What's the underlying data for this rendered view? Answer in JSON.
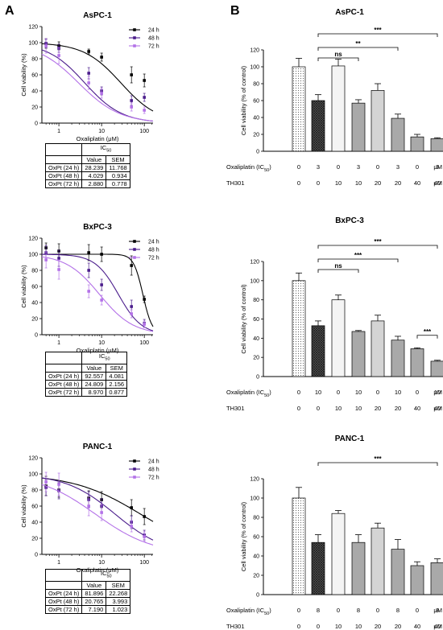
{
  "panel_labels": [
    "A",
    "B"
  ],
  "chart_data": [
    {
      "type": "scatter",
      "title": "AsPC-1",
      "xlabel": "Oxaliplatin (μM)",
      "ylabel": "Cell viability (%)",
      "x_scale": "log",
      "xlim": [
        0.4,
        160
      ],
      "ylim": [
        0,
        120
      ],
      "x_ticks": [
        "1",
        "10",
        "100"
      ],
      "y_ticks": [
        "0",
        "20",
        "40",
        "60",
        "80",
        "100",
        "120"
      ],
      "legend_position": "top-right",
      "series": [
        {
          "name": "24 h",
          "color": "#000000",
          "x": [
            0.5,
            1,
            5,
            10,
            50,
            100
          ],
          "y": [
            99,
            96,
            89,
            82,
            60,
            53
          ],
          "err": [
            6,
            5,
            3,
            5,
            10,
            8
          ],
          "fit_ic50": 28.239,
          "fit_hill": 1.0
        },
        {
          "name": "48 h",
          "color": "#4b1d8c",
          "x": [
            0.5,
            1,
            5,
            10,
            50,
            100
          ],
          "y": [
            99,
            93,
            62,
            40,
            28,
            32
          ],
          "err": [
            5,
            5,
            7,
            5,
            6,
            5
          ],
          "fit_ic50": 4.029,
          "fit_hill": 1.0
        },
        {
          "name": "72 h",
          "color": "#b472e8",
          "x": [
            0.5,
            1,
            5,
            10,
            50,
            100
          ],
          "y": [
            96,
            84,
            50,
            37,
            20,
            16
          ],
          "err": [
            9,
            10,
            8,
            6,
            5,
            4
          ],
          "fit_ic50": 2.88,
          "fit_hill": 0.9
        }
      ]
    },
    {
      "type": "scatter",
      "title": "BxPC-3",
      "xlabel": "Oxaliplatin (μM)",
      "ylabel": "Cell viability (%)",
      "x_scale": "log",
      "xlim": [
        0.4,
        160
      ],
      "ylim": [
        0,
        120
      ],
      "x_ticks": [
        "1",
        "10",
        "100"
      ],
      "y_ticks": [
        "0",
        "20",
        "40",
        "60",
        "80",
        "100",
        "120"
      ],
      "legend_position": "top-right",
      "series": [
        {
          "name": "24 h",
          "color": "#000000",
          "x": [
            0.5,
            1,
            5,
            10,
            50,
            100
          ],
          "y": [
            108,
            104,
            102,
            100,
            86,
            44
          ],
          "err": [
            6,
            9,
            10,
            9,
            12,
            4
          ],
          "fit_ic50": 92.557,
          "fit_hill": 4.0
        },
        {
          "name": "48 h",
          "color": "#4b1d8c",
          "x": [
            0.5,
            1,
            5,
            10,
            50,
            100
          ],
          "y": [
            102,
            95,
            80,
            62,
            35,
            14
          ],
          "err": [
            9,
            10,
            9,
            7,
            8,
            5
          ],
          "fit_ic50": 24.809,
          "fit_hill": 1.6
        },
        {
          "name": "72 h",
          "color": "#b472e8",
          "x": [
            0.5,
            1,
            5,
            10,
            50,
            100
          ],
          "y": [
            93,
            81,
            54,
            43,
            26,
            13
          ],
          "err": [
            10,
            12,
            8,
            6,
            5,
            4
          ],
          "fit_ic50": 8.97,
          "fit_hill": 1.1
        }
      ]
    },
    {
      "type": "scatter",
      "title": "PANC-1",
      "xlabel": "Oxaliplatin (μM)",
      "ylabel": "Cell viability (%)",
      "x_scale": "log",
      "xlim": [
        0.4,
        160
      ],
      "ylim": [
        0,
        120
      ],
      "x_ticks": [
        "1",
        "10",
        "100"
      ],
      "y_ticks": [
        "0",
        "20",
        "40",
        "60",
        "80",
        "100",
        "120"
      ],
      "legend_position": "top-right",
      "series": [
        {
          "name": "24 h",
          "color": "#000000",
          "x": [
            0.5,
            1,
            5,
            10,
            50,
            100
          ],
          "y": [
            85,
            80,
            70,
            68,
            58,
            47
          ],
          "err": [
            12,
            9,
            9,
            10,
            10,
            10
          ],
          "fit_ic50": 81.896,
          "fit_hill": 0.55
        },
        {
          "name": "48 h",
          "color": "#4b1d8c",
          "x": [
            0.5,
            1,
            5,
            10,
            50,
            100
          ],
          "y": [
            83,
            79,
            68,
            60,
            40,
            24
          ],
          "err": [
            10,
            10,
            10,
            9,
            8,
            6
          ],
          "fit_ic50": 20.765,
          "fit_hill": 0.75
        },
        {
          "name": "72 h",
          "color": "#b472e8",
          "x": [
            0.5,
            1,
            5,
            10,
            50,
            100
          ],
          "y": [
            90,
            87,
            60,
            52,
            35,
            22
          ],
          "err": [
            12,
            14,
            12,
            10,
            7,
            6
          ],
          "fit_ic50": 7.19,
          "fit_hill": 0.65
        }
      ]
    },
    {
      "type": "bar",
      "title": "AsPC-1",
      "ylabel": "Cell viability (% of control)",
      "ylim": [
        0,
        120
      ],
      "y_ticks": [
        "0",
        "20",
        "40",
        "60",
        "80",
        "100",
        "120"
      ],
      "row_labels": [
        "Oxaliplatin (IC50)",
        "TH301"
      ],
      "unit": "μM",
      "oxaliplatin": [
        "0",
        "3",
        "0",
        "3",
        "0",
        "3",
        "0",
        "3"
      ],
      "th301": [
        "0",
        "0",
        "10",
        "10",
        "20",
        "20",
        "40",
        "40"
      ],
      "values": [
        100,
        60,
        101,
        57,
        72,
        39,
        17,
        15
      ],
      "errors": [
        10,
        7,
        8,
        4,
        8,
        5,
        3,
        1
      ],
      "fills": [
        "dots",
        "cross",
        "#f4f4f4",
        "#a9a9a9",
        "#d4d4d4",
        "#a9a9a9",
        "#a9a9a9",
        "#a9a9a9"
      ],
      "significance": [
        {
          "from": 1,
          "to": 7,
          "label": "***"
        },
        {
          "from": 1,
          "to": 5,
          "label": "**"
        },
        {
          "from": 1,
          "to": 3,
          "label": "ns"
        }
      ]
    },
    {
      "type": "bar",
      "title": "BxPC-3",
      "ylabel": "Cell viability (% of control)",
      "ylim": [
        0,
        120
      ],
      "y_ticks": [
        "0",
        "20",
        "40",
        "60",
        "80",
        "100",
        "120"
      ],
      "row_labels": [
        "Oxaliplatin (IC50)",
        "TH301"
      ],
      "unit": "μM",
      "oxaliplatin": [
        "0",
        "10",
        "0",
        "10",
        "0",
        "10",
        "0",
        "10"
      ],
      "th301": [
        "0",
        "0",
        "10",
        "10",
        "20",
        "20",
        "40",
        "40"
      ],
      "values": [
        100,
        53,
        80,
        47,
        58,
        38,
        29,
        16
      ],
      "errors": [
        8,
        5,
        5,
        1,
        6,
        4,
        1,
        1
      ],
      "fills": [
        "dots",
        "cross",
        "#f4f4f4",
        "#a9a9a9",
        "#d4d4d4",
        "#a9a9a9",
        "#a9a9a9",
        "#a9a9a9"
      ],
      "significance": [
        {
          "from": 1,
          "to": 7,
          "label": "***"
        },
        {
          "from": 1,
          "to": 5,
          "label": "***"
        },
        {
          "from": 1,
          "to": 3,
          "label": "ns"
        },
        {
          "from": 6,
          "to": 7,
          "label": "***"
        }
      ]
    },
    {
      "type": "bar",
      "title": "PANC-1",
      "ylabel": "Cell viability (% of control)",
      "ylim": [
        0,
        120
      ],
      "y_ticks": [
        "0",
        "20",
        "40",
        "60",
        "80",
        "100",
        "120"
      ],
      "row_labels": [
        "Oxaliplatin (IC50)",
        "TH301"
      ],
      "unit": "μM",
      "oxaliplatin": [
        "0",
        "8",
        "0",
        "8",
        "0",
        "8",
        "0",
        "8"
      ],
      "th301": [
        "0",
        "0",
        "10",
        "10",
        "20",
        "20",
        "40",
        "40"
      ],
      "values": [
        100,
        54,
        84,
        54,
        69,
        47,
        30,
        33
      ],
      "errors": [
        11,
        8,
        3,
        8,
        5,
        10,
        4,
        4
      ],
      "fills": [
        "dots",
        "cross",
        "#f4f4f4",
        "#a9a9a9",
        "#d4d4d4",
        "#a9a9a9",
        "#a9a9a9",
        "#a9a9a9"
      ],
      "significance": [
        {
          "from": 1,
          "to": 7,
          "label": "***"
        }
      ]
    }
  ],
  "ic50_tables": [
    {
      "header": "IC50",
      "columns": [
        "Value",
        "SEM"
      ],
      "rows": [
        {
          "label": "OxPt (24 h)",
          "value": "28.239",
          "sem": "11.768"
        },
        {
          "label": "OxPt (48 h)",
          "value": "4.029",
          "sem": "0.934"
        },
        {
          "label": "OxPt (72 h)",
          "value": "2.880",
          "sem": "0.778"
        }
      ]
    },
    {
      "header": "IC50",
      "columns": [
        "Value",
        "SEM"
      ],
      "rows": [
        {
          "label": "OxPt (24 h)",
          "value": "92.557",
          "sem": "4.081"
        },
        {
          "label": "OxPt (48 h)",
          "value": "24.809",
          "sem": "2.156"
        },
        {
          "label": "OxPt (72 h)",
          "value": "8.970",
          "sem": "0.877"
        }
      ]
    },
    {
      "header": "IC50",
      "columns": [
        "Value",
        "SEM"
      ],
      "rows": [
        {
          "label": "OxPt (24 h)",
          "value": "81.896",
          "sem": "22.268"
        },
        {
          "label": "OxPt (48 h)",
          "value": "20.765",
          "sem": "3.993"
        },
        {
          "label": "OxPt (72 h)",
          "value": "7.190",
          "sem": "1.023"
        }
      ]
    }
  ]
}
